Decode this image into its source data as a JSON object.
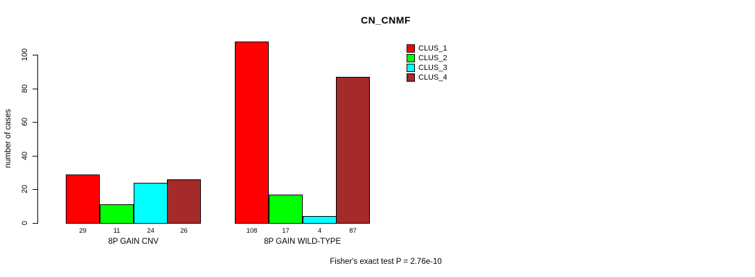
{
  "chart_data": {
    "type": "bar",
    "title": "CN_CNMF",
    "ylabel": "number of cases",
    "xlabel": "",
    "ylim": [
      0,
      100
    ],
    "yticks": [
      0,
      20,
      40,
      60,
      80,
      100
    ],
    "grid": false,
    "legend_position": "top-right",
    "bar_value_labels_shown": true,
    "categories": [
      "8P GAIN CNV",
      "8P GAIN WILD-TYPE"
    ],
    "series": [
      {
        "name": "CLUS_1",
        "color": "#ff0000",
        "values": [
          29,
          108
        ]
      },
      {
        "name": "CLUS_2",
        "color": "#00ff00",
        "values": [
          11,
          17
        ]
      },
      {
        "name": "CLUS_3",
        "color": "#00ffff",
        "values": [
          24,
          4
        ]
      },
      {
        "name": "CLUS_4",
        "color": "#a52a2a",
        "values": [
          26,
          87
        ]
      }
    ],
    "annotation": "Fisher's exact test P = 2.76e-10"
  },
  "colors": {
    "background": "#ffffff",
    "axis": "#000000",
    "text": "#000000",
    "bar_border": "#000000"
  }
}
